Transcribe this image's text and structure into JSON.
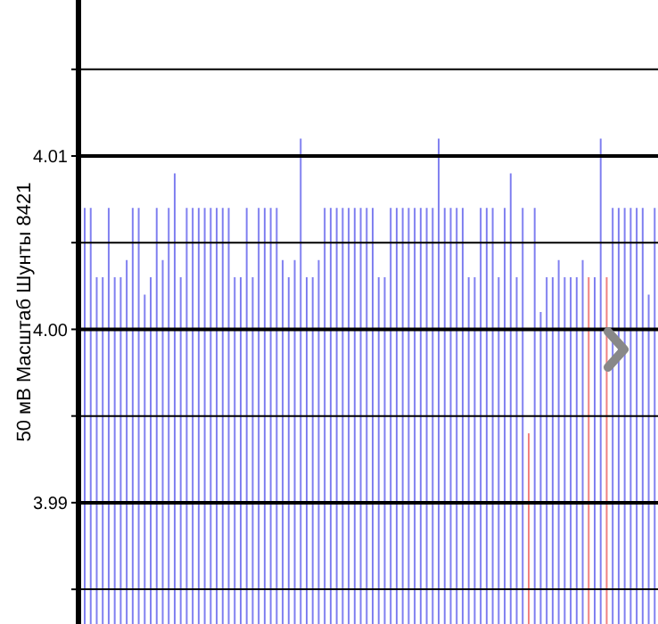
{
  "chart_data": {
    "type": "bar",
    "ylabel": "50 мВ Масштаб  Шунты 8421",
    "categories": [
      null,
      null,
      null,
      null,
      null,
      null,
      null,
      null,
      null,
      null,
      null,
      null,
      null,
      null,
      null,
      null,
      null,
      null,
      null,
      null,
      null,
      null,
      null,
      null,
      null,
      null,
      null,
      null,
      null,
      null,
      null,
      null,
      null,
      null,
      null,
      null,
      null,
      null,
      null,
      null,
      null,
      null,
      null,
      null,
      null,
      null,
      null,
      null,
      null,
      null,
      null,
      null,
      null,
      null,
      null,
      null,
      null,
      null,
      null,
      null,
      null,
      null,
      null,
      null,
      null,
      null,
      null,
      null,
      null,
      null,
      null,
      null,
      null,
      null,
      null,
      null,
      null,
      null,
      null,
      null,
      null,
      null,
      null,
      null,
      null,
      null,
      null,
      null,
      null,
      null,
      null,
      null,
      null,
      null,
      null,
      null
    ],
    "values": [
      4.007,
      4.007,
      4.003,
      4.003,
      4.007,
      4.003,
      4.003,
      4.004,
      4.007,
      4.007,
      4.002,
      4.003,
      4.007,
      4.004,
      4.007,
      4.009,
      4.003,
      4.007,
      4.007,
      4.007,
      4.007,
      4.007,
      4.007,
      4.007,
      4.007,
      4.003,
      4.003,
      4.007,
      4.003,
      4.007,
      4.007,
      4.007,
      4.007,
      4.004,
      4.003,
      4.004,
      4.011,
      4.003,
      4.003,
      4.004,
      4.007,
      4.007,
      4.007,
      4.007,
      4.007,
      4.007,
      4.007,
      4.007,
      4.007,
      4.003,
      4.003,
      4.007,
      4.007,
      4.007,
      4.007,
      4.007,
      4.007,
      4.007,
      4.007,
      4.011,
      4.007,
      4.007,
      4.007,
      4.007,
      4.003,
      4.003,
      4.007,
      4.007,
      4.007,
      4.003,
      4.007,
      4.009,
      4.003,
      4.007,
      3.994,
      4.007,
      4.001,
      4.003,
      4.003,
      4.004,
      4.003,
      4.003,
      4.003,
      4.004,
      4.003,
      4.003,
      4.011,
      4.003,
      4.007,
      4.007,
      4.007,
      4.007,
      4.007,
      4.007,
      4.002,
      4.007
    ],
    "colors": [
      "#8080f0",
      "#8080f0",
      "#8080f0",
      "#8080f0",
      "#8080f0",
      "#8080f0",
      "#8080f0",
      "#8080f0",
      "#8080f0",
      "#8080f0",
      "#8080f0",
      "#8080f0",
      "#8080f0",
      "#8080f0",
      "#8080f0",
      "#8080f0",
      "#8080f0",
      "#8080f0",
      "#8080f0",
      "#8080f0",
      "#8080f0",
      "#8080f0",
      "#8080f0",
      "#8080f0",
      "#8080f0",
      "#8080f0",
      "#8080f0",
      "#8080f0",
      "#8080f0",
      "#8080f0",
      "#8080f0",
      "#8080f0",
      "#8080f0",
      "#8080f0",
      "#8080f0",
      "#8080f0",
      "#8080f0",
      "#8080f0",
      "#8080f0",
      "#8080f0",
      "#8080f0",
      "#8080f0",
      "#8080f0",
      "#8080f0",
      "#8080f0",
      "#8080f0",
      "#8080f0",
      "#8080f0",
      "#8080f0",
      "#8080f0",
      "#8080f0",
      "#8080f0",
      "#8080f0",
      "#8080f0",
      "#8080f0",
      "#8080f0",
      "#8080f0",
      "#8080f0",
      "#8080f0",
      "#8080f0",
      "#8080f0",
      "#8080f0",
      "#8080f0",
      "#8080f0",
      "#8080f0",
      "#8080f0",
      "#8080f0",
      "#8080f0",
      "#8080f0",
      "#8080f0",
      "#8080f0",
      "#8080f0",
      "#8080f0",
      "#8080f0",
      "#f08080",
      "#8080f0",
      "#8080f0",
      "#8080f0",
      "#8080f0",
      "#8080f0",
      "#8080f0",
      "#8080f0",
      "#8080f0",
      "#8080f0",
      "#f08080",
      "#8080f0",
      "#8080f0",
      "#f08080",
      "#8080f0",
      "#8080f0",
      "#8080f0",
      "#8080f0",
      "#8080f0",
      "#8080f0",
      "#8080f0",
      "#8080f0"
    ],
    "ylim": [
      3.983,
      4.019
    ],
    "yticks": [
      {
        "value": 3.985,
        "label": null
      },
      {
        "value": 3.99,
        "label": "3.99"
      },
      {
        "value": 3.995,
        "label": null
      },
      {
        "value": 4.0,
        "label": "4.00"
      },
      {
        "value": 4.005,
        "label": null
      },
      {
        "value": 4.01,
        "label": "4.01"
      },
      {
        "value": 4.015,
        "label": null
      }
    ],
    "grid": "y",
    "tick_labels": "y"
  }
}
